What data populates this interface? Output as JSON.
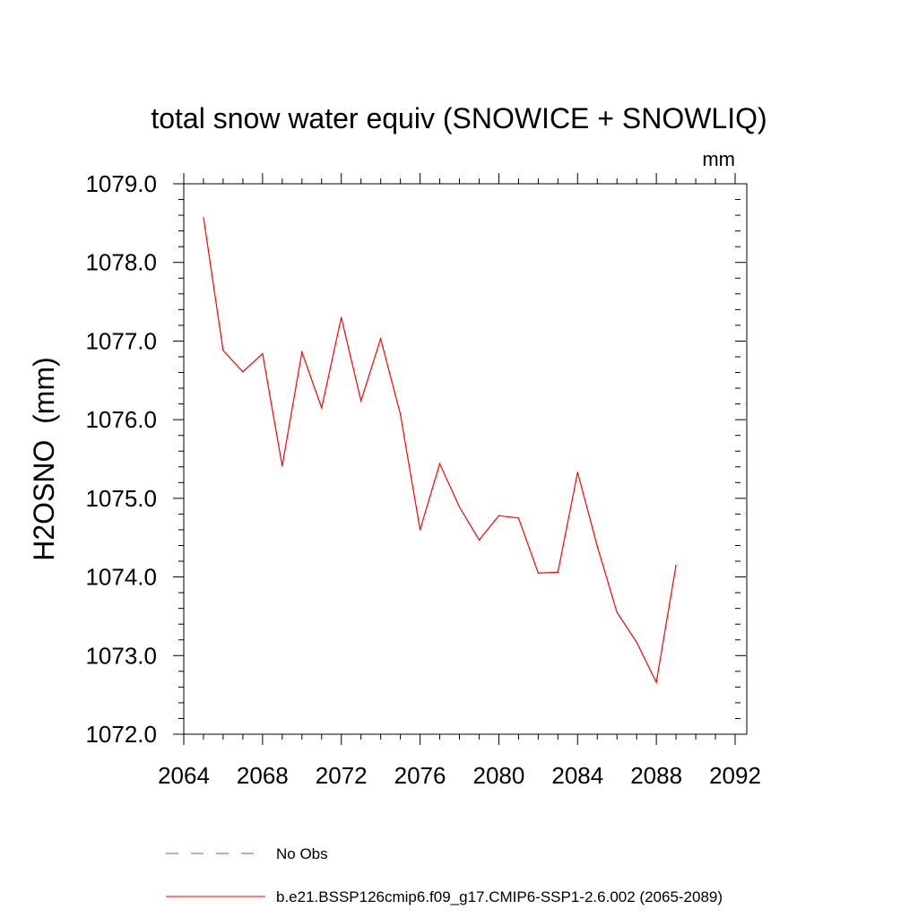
{
  "chart_data": {
    "type": "line",
    "title": "total snow water equiv (SNOWICE + SNOWLIQ)",
    "units_label": "mm",
    "ylabel": "H2OSNO  (mm)",
    "xlabel": "",
    "xlim": [
      2064,
      2092
    ],
    "ylim": [
      1072.0,
      1079.0
    ],
    "xticks": [
      2064,
      2068,
      2072,
      2076,
      2080,
      2084,
      2088,
      2092
    ],
    "yticks": [
      "1072.0",
      "1073.0",
      "1074.0",
      "1075.0",
      "1076.0",
      "1077.0",
      "1078.0",
      "1079.0"
    ],
    "grid": false,
    "series": [
      {
        "name": "b.e21.BSSP126cmip6.f09_g17.CMIP6-SSP1-2.6.002 (2065-2089)",
        "color": "#ff0000",
        "style": "solid",
        "x": [
          2065,
          2066,
          2067,
          2068,
          2069,
          2070,
          2071,
          2072,
          2073,
          2074,
          2075,
          2076,
          2077,
          2078,
          2079,
          2080,
          2081,
          2082,
          2083,
          2084,
          2085,
          2086,
          2087,
          2088,
          2089
        ],
        "y": [
          1078.57,
          1076.88,
          1076.61,
          1076.84,
          1075.41,
          1076.86,
          1076.15,
          1077.3,
          1076.24,
          1077.03,
          1076.07,
          1074.6,
          1075.44,
          1074.89,
          1074.47,
          1074.78,
          1074.75,
          1074.05,
          1074.06,
          1075.33,
          1074.39,
          1073.55,
          1073.17,
          1072.66,
          1074.15
        ]
      }
    ],
    "legend": [
      {
        "label": "No Obs",
        "color": "#6a5acd",
        "style": "dashed"
      },
      {
        "label": "b.e21.BSSP126cmip6.f09_g17.CMIP6-SSP1-2.6.002 (2065-2089)",
        "color": "#ff0000",
        "style": "solid"
      }
    ],
    "legend_position": "bottom"
  }
}
